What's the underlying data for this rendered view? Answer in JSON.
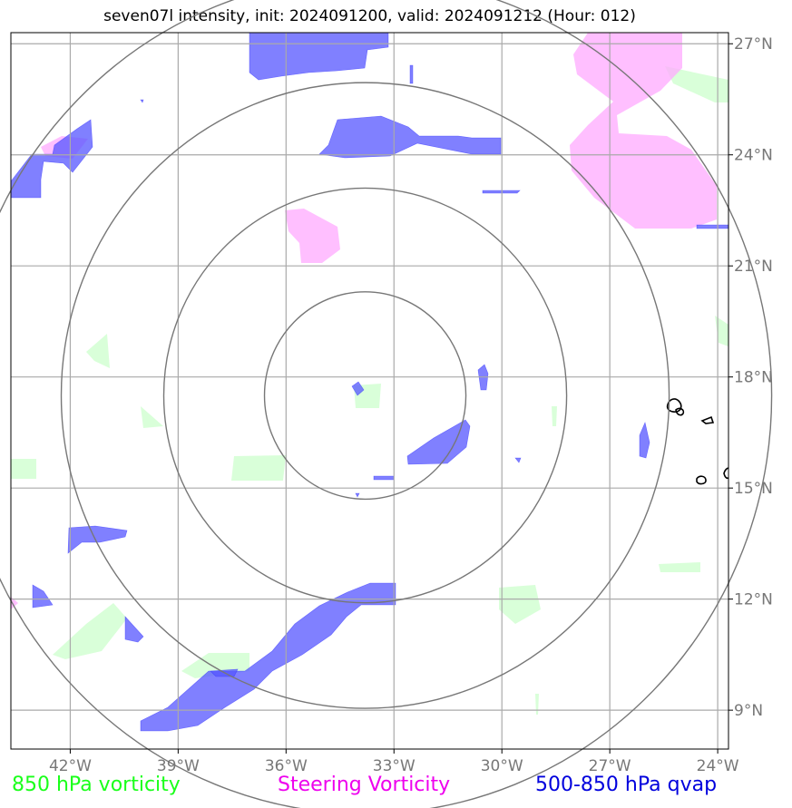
{
  "title": "seven07l intensity, init: 2024091200, valid: 2024091212 (Hour: 012)",
  "map": {
    "lon_range": [
      -43.65,
      -23.7
    ],
    "lat_range": [
      7.95,
      27.3
    ],
    "lat_ticks": [
      {
        "value": 9,
        "label": "9°N"
      },
      {
        "value": 12,
        "label": "12°N"
      },
      {
        "value": 15,
        "label": "15°N"
      },
      {
        "value": 18,
        "label": "18°N"
      },
      {
        "value": 21,
        "label": "21°N"
      },
      {
        "value": 24,
        "label": "24°N"
      },
      {
        "value": 27,
        "label": "27°N"
      }
    ],
    "lon_ticks": [
      {
        "value": -42,
        "label": "42°W"
      },
      {
        "value": -39,
        "label": "39°W"
      },
      {
        "value": -36,
        "label": "36°W"
      },
      {
        "value": -33,
        "label": "33°W"
      },
      {
        "value": -30,
        "label": "30°W"
      },
      {
        "value": -27,
        "label": "27°W"
      },
      {
        "value": -24,
        "label": "24°W"
      }
    ],
    "storm_center": {
      "lon": -33.8,
      "lat": 17.5
    },
    "range_rings_deg": [
      2.8,
      5.6,
      8.45,
      11.3
    ],
    "colors": {
      "vorticity_850": "#ccffcc",
      "steering_vorticity": "#ffaaff",
      "qvap": "#5555ff",
      "ring": "#777777",
      "grid": "#aaaaaa"
    }
  },
  "legend": {
    "vort850": "850 hPa vorticity",
    "steering": "Steering Vorticity",
    "qvap": "500-850 hPa qvap"
  }
}
